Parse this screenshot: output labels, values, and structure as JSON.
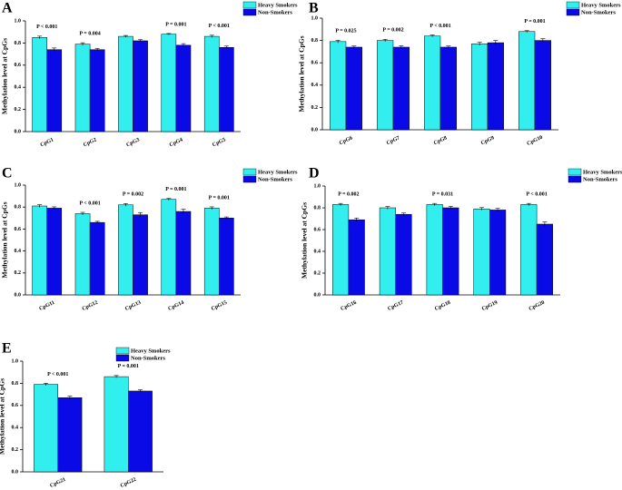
{
  "chart_data": [
    {
      "type": "bar",
      "panel_label": "A",
      "ylabel": "Methylation level at CpGs",
      "categories": [
        "CpG1",
        "CpG2",
        "CpG3",
        "CpG4",
        "CpG5"
      ],
      "series": [
        {
          "name": "Heavy Smokers",
          "color": "#33eeee",
          "values": [
            0.85,
            0.79,
            0.86,
            0.88,
            0.86
          ],
          "errors": [
            0.012,
            0.012,
            0.008,
            0.006,
            0.01
          ]
        },
        {
          "name": "Non-Smokers",
          "color": "#0a0ae6",
          "values": [
            0.74,
            0.74,
            0.82,
            0.78,
            0.76
          ],
          "errors": [
            0.015,
            0.012,
            0.01,
            0.014,
            0.012
          ]
        }
      ],
      "annotations": [
        "P < 0.001",
        "P = 0.004",
        null,
        "P = 0.001",
        "P < 0.001"
      ],
      "ylim": [
        0,
        1
      ],
      "yticks": [
        {
          "value": 0,
          "label": "0.0"
        },
        0.2,
        0.4,
        0.6,
        0.8,
        {
          "value": 1,
          "label": "1.0"
        }
      ]
    },
    {
      "type": "bar",
      "panel_label": "B",
      "ylabel": "Methylation level at CpGs",
      "categories": [
        "CpG6",
        "CpG7",
        "CpG8",
        "CpG9",
        "CpG10"
      ],
      "series": [
        {
          "name": "Heavy Smokers",
          "color": "#33eeee",
          "values": [
            0.79,
            0.8,
            0.84,
            0.77,
            0.88
          ],
          "errors": [
            0.012,
            0.01,
            0.008,
            0.014,
            0.008
          ]
        },
        {
          "name": "Non-Smokers",
          "color": "#0a0ae6",
          "values": [
            0.74,
            0.74,
            0.74,
            0.78,
            0.8
          ],
          "errors": [
            0.01,
            0.012,
            0.01,
            0.02,
            0.016
          ]
        }
      ],
      "annotations": [
        "P = 0.025",
        "P = 0.002",
        "P < 0.001",
        null,
        "P = 0.001"
      ],
      "ylim": [
        0,
        1
      ],
      "yticks": [
        {
          "value": 0,
          "label": "0.0"
        },
        0.2,
        0.4,
        0.6,
        0.8,
        {
          "value": 1,
          "label": "1.0"
        }
      ]
    },
    {
      "type": "bar",
      "panel_label": "C",
      "ylabel": "Methylation level at CpGs",
      "categories": [
        "CpG11",
        "CpG12",
        "CpG13",
        "CpG14",
        "CpG15"
      ],
      "series": [
        {
          "name": "Heavy Smokers",
          "color": "#33eeee",
          "values": [
            0.81,
            0.74,
            0.82,
            0.87,
            0.79
          ],
          "errors": [
            0.012,
            0.012,
            0.012,
            0.008,
            0.012
          ]
        },
        {
          "name": "Non-Smokers",
          "color": "#0a0ae6",
          "values": [
            0.79,
            0.66,
            0.73,
            0.76,
            0.7
          ],
          "errors": [
            0.012,
            0.01,
            0.02,
            0.02,
            0.01
          ]
        }
      ],
      "annotations": [
        null,
        "P < 0.001",
        "P = 0.002",
        "P = 0.001",
        "P = 0.001"
      ],
      "ylim": [
        0,
        1
      ],
      "yticks": [
        {
          "value": 0,
          "label": "0.0"
        },
        0.2,
        0.4,
        0.6,
        0.8,
        {
          "value": 1,
          "label": "1.0"
        }
      ]
    },
    {
      "type": "bar",
      "panel_label": "D",
      "ylabel": "Methylation level at CpGs",
      "categories": [
        "CpG16",
        "CpG17",
        "CpG18",
        "CpG19",
        "CpG20"
      ],
      "series": [
        {
          "name": "Heavy Smokers",
          "color": "#33eeee",
          "values": [
            0.83,
            0.8,
            0.83,
            0.79,
            0.83
          ],
          "errors": [
            0.01,
            0.012,
            0.01,
            0.012,
            0.01
          ]
        },
        {
          "name": "Non-Smokers",
          "color": "#0a0ae6",
          "values": [
            0.69,
            0.74,
            0.8,
            0.78,
            0.65
          ],
          "errors": [
            0.016,
            0.012,
            0.012,
            0.014,
            0.02
          ]
        }
      ],
      "annotations": [
        "P = 0.002",
        null,
        "P = 0.031",
        null,
        "P < 0.001"
      ],
      "ylim": [
        0,
        1
      ],
      "yticks": [
        {
          "value": 0,
          "label": "0.0"
        },
        0.2,
        0.4,
        0.6,
        0.8,
        {
          "value": 1,
          "label": "1.0"
        }
      ]
    },
    {
      "type": "bar",
      "panel_label": "E",
      "ylabel": "Methylation level at CpGs",
      "categories": [
        "CpG21",
        "CpG22"
      ],
      "series": [
        {
          "name": "Heavy Smokers",
          "color": "#33eeee",
          "values": [
            0.79,
            0.86
          ],
          "errors": [
            0.01,
            0.01
          ]
        },
        {
          "name": "Non-Smokers",
          "color": "#0a0ae6",
          "values": [
            0.67,
            0.73
          ],
          "errors": [
            0.014,
            0.012
          ]
        }
      ],
      "annotations": [
        "P < 0.001",
        "P = 0.001"
      ],
      "ylim": [
        0,
        1
      ],
      "yticks": [
        {
          "value": 0,
          "label": "0.0"
        },
        0.2,
        0.4,
        0.6,
        0.8,
        {
          "value": 1,
          "label": "1.0"
        }
      ]
    }
  ]
}
